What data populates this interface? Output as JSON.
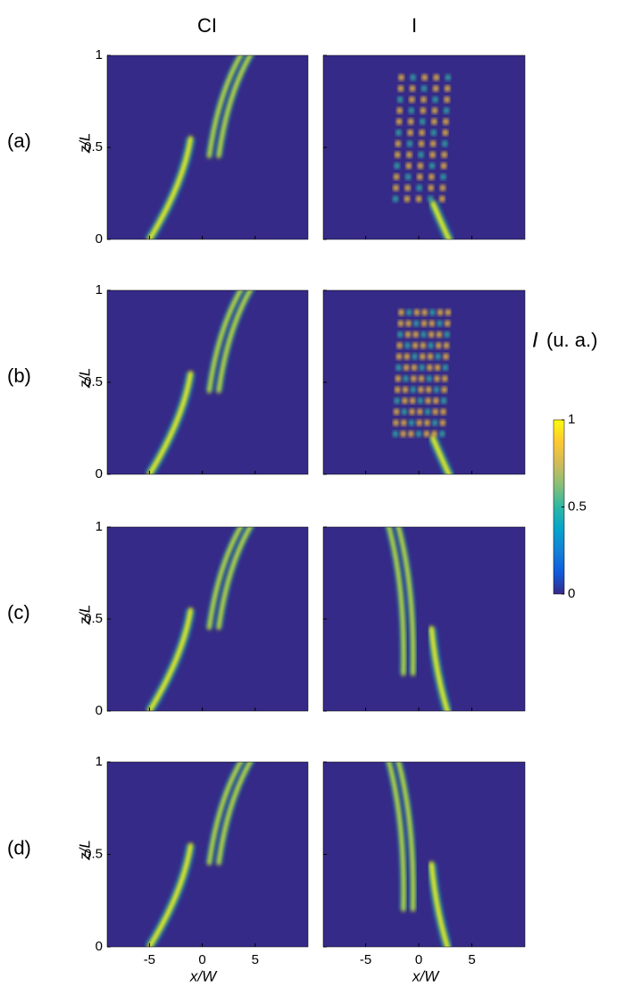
{
  "figure": {
    "column_titles": [
      "CI",
      "I"
    ],
    "row_labels": [
      "(a)",
      "(b)",
      "(c)",
      "(d)"
    ],
    "x_label": "x/W",
    "y_label": "z/L",
    "xlim": [
      -9,
      10
    ],
    "xticks": [
      -5,
      0,
      5
    ],
    "ylim": [
      0,
      1
    ],
    "yticks": [
      0,
      0.5,
      1
    ],
    "colorbar": {
      "symbol": "I",
      "unit": "(u. a.)",
      "lim": [
        0,
        1
      ],
      "ticks": [
        0,
        0.5,
        1
      ],
      "colors": [
        "#352a87",
        "#0f5cdd",
        "#1481d6",
        "#06a4ca",
        "#2eb7a4",
        "#87bf77",
        "#d1bb59",
        "#fec832",
        "#f9fb0e"
      ]
    }
  }
}
